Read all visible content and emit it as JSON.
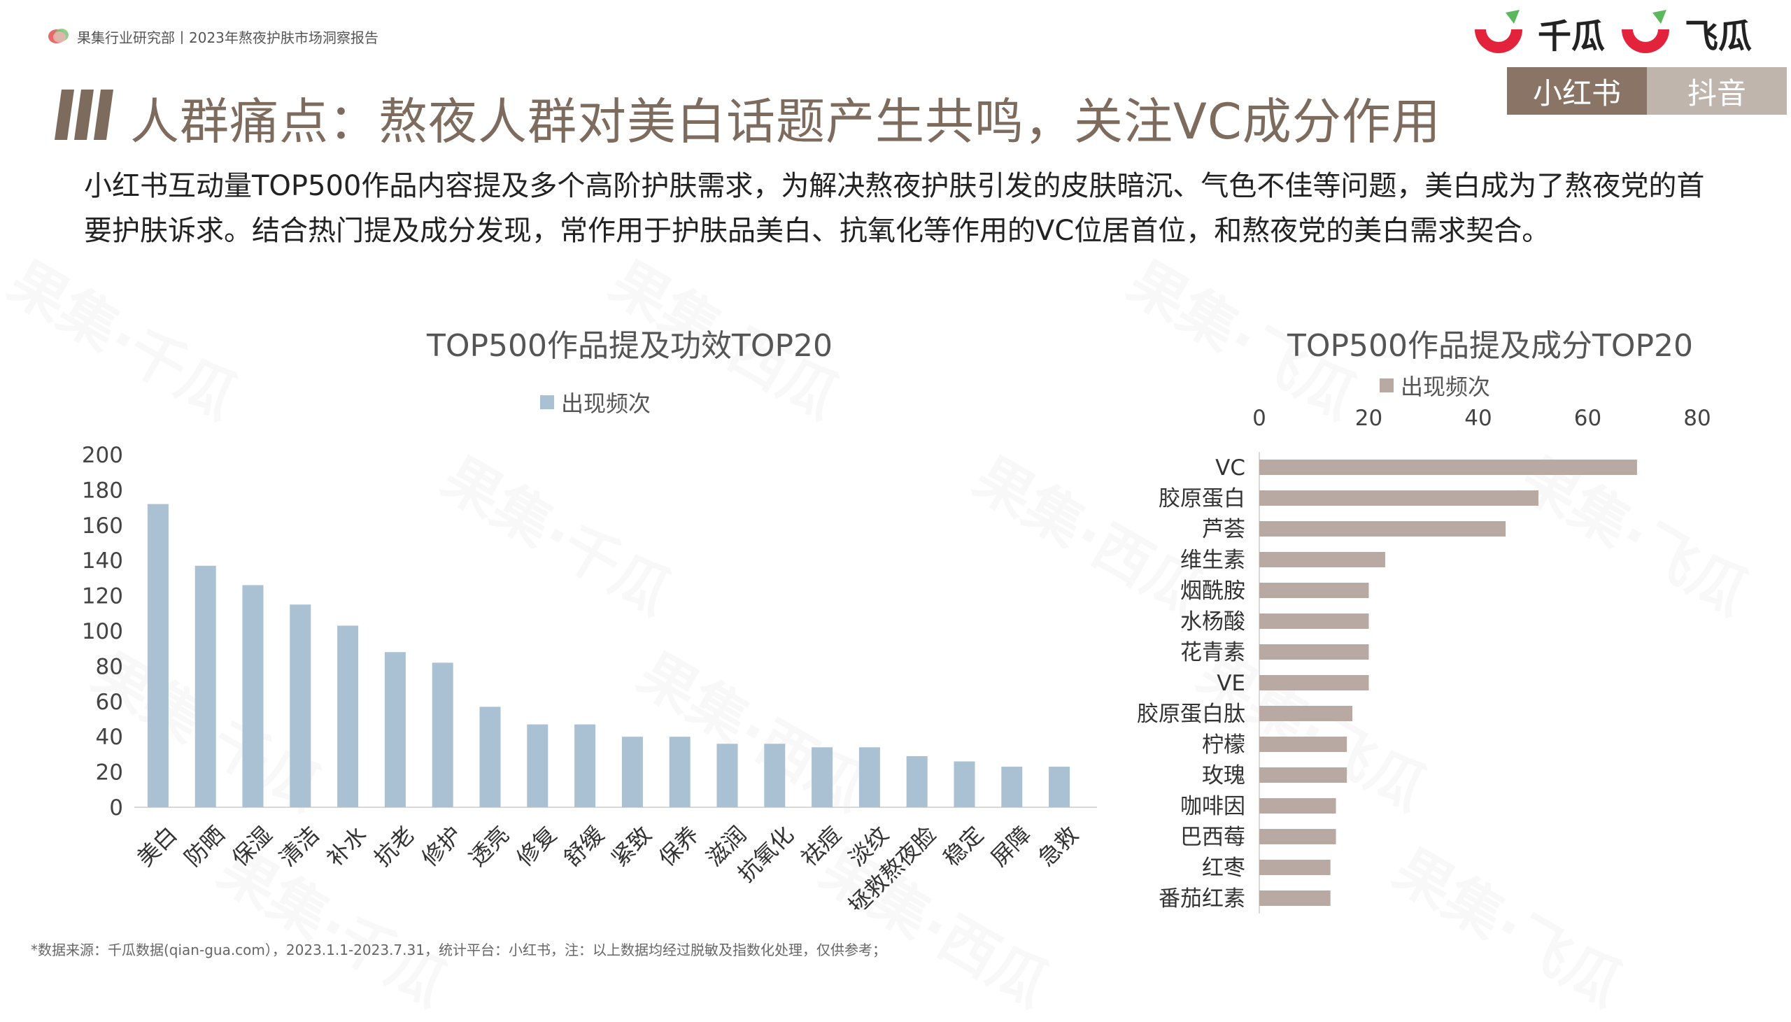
{
  "header": {
    "breadcrumb": "果集行业研究部丨2023年熬夜护肤市场洞察报告",
    "brand_logos": [
      "千瓜",
      "飞瓜"
    ]
  },
  "tabs": [
    {
      "label": "小红书",
      "active": true
    },
    {
      "label": "抖音",
      "active": false
    }
  ],
  "page_title": "人群痛点：熬夜人群对美白话题产生共鸣，关注VC成分作用",
  "summary": "小红书互动量TOP500作品内容提及多个高阶护肤需求，为解决熬夜护肤引发的皮肤暗沉、气色不佳等问题，美白成为了熬夜党的首要护肤诉求。结合热门提及成分发现，常作用于护肤品美白、抗氧化等作用的VC位居首位，和熬夜党的美白需求契合。",
  "watermark": [
    "果集·千瓜",
    "果集·西瓜",
    "果集·飞瓜"
  ],
  "colors": {
    "accent": "#7d6b5e",
    "tab_active": "#8a7465",
    "tab_inactive": "#bfb5ad",
    "bar_left": "#a9c1d3",
    "bar_right": "#b8aaa3",
    "logo_red": "#e2233b",
    "logo_green": "#5cb85c"
  },
  "chart_data": [
    {
      "type": "bar",
      "orientation": "vertical",
      "title": "TOP500作品提及功效TOP20",
      "legend": "top",
      "series": [
        {
          "name": "出现频次",
          "color": "#a9c1d3",
          "values": [
            172,
            137,
            126,
            115,
            103,
            88,
            82,
            57,
            47,
            47,
            40,
            40,
            36,
            36,
            34,
            34,
            29,
            26,
            23,
            23
          ]
        }
      ],
      "categories": [
        "美白",
        "防晒",
        "保湿",
        "清洁",
        "补水",
        "抗老",
        "修护",
        "透亮",
        "修复",
        "舒缓",
        "紧致",
        "保养",
        "滋润",
        "抗氧化",
        "祛痘",
        "淡纹",
        "拯救熬夜脸",
        "稳定",
        "屏障",
        "急救"
      ],
      "ylim": [
        0,
        200
      ],
      "yticks": [
        0,
        20,
        40,
        60,
        80,
        100,
        120,
        140,
        160,
        180,
        200
      ],
      "grid": false
    },
    {
      "type": "bar",
      "orientation": "horizontal",
      "title": "TOP500作品提及成分TOP20",
      "legend": "top",
      "series": [
        {
          "name": "出现频次",
          "color": "#b8aaa3",
          "values": [
            69,
            51,
            45,
            23,
            20,
            20,
            20,
            20,
            17,
            16,
            16,
            14,
            14,
            13,
            13
          ]
        }
      ],
      "categories": [
        "VC",
        "胶原蛋白",
        "芦荟",
        "维生素",
        "烟酰胺",
        "水杨酸",
        "花青素",
        "VE",
        "胶原蛋白肽",
        "柠檬",
        "玫瑰",
        "咖啡因",
        "巴西莓",
        "红枣",
        "番茄红素"
      ],
      "xlim": [
        0,
        80
      ],
      "xticks": [
        0,
        20,
        40,
        60,
        80
      ],
      "grid": false
    }
  ],
  "footnote": "*数据来源：千瓜数据(qian-gua.com），2023.1.1-2023.7.31，统计平台：小红书，注：以上数据均经过脱敏及指数化处理，仅供参考；"
}
